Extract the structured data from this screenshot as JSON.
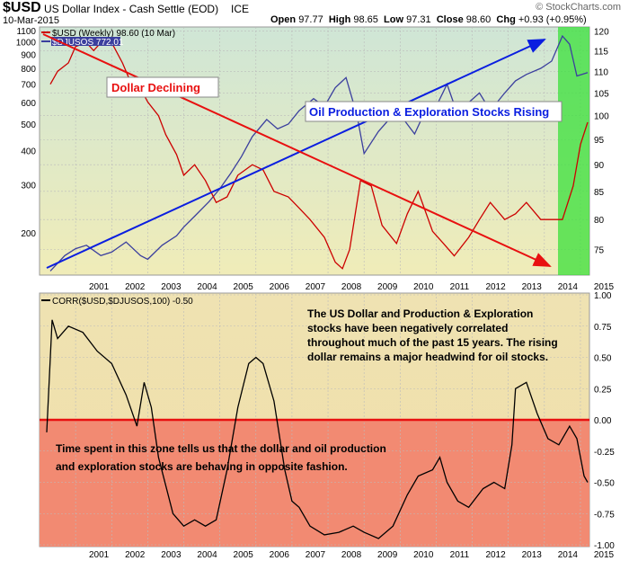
{
  "header": {
    "symbol": "$USD",
    "name": "US Dollar Index - Cash Settle (EOD)",
    "exchange": "ICE",
    "date": "10-Mar-2015",
    "open_label": "Open",
    "open": "97.77",
    "high_label": "High",
    "high": "98.65",
    "low_label": "Low",
    "low": "97.31",
    "close_label": "Close",
    "close": "98.60",
    "chg_label": "Chg",
    "chg": "+0.93 (+0.95%)",
    "brand": "© StockCharts.com"
  },
  "colors": {
    "usd": "#cc0000",
    "djusos": "#3b3f9e",
    "arrow_blue": "#0a1ee0",
    "arrow_red": "#e81010",
    "green_zone": "#39e039",
    "neg_zone": "#f28a72",
    "upper_bg_top": "#cfe6d6",
    "upper_bg_bottom": "#f0ecb8"
  },
  "chart_data": [
    {
      "type": "line",
      "legend": [
        {
          "name": "$USD (Weekly) 98.60 (10 Mar)",
          "color": "#cc0000"
        },
        {
          "name": "$DJUSOS 772.01",
          "color": "#3b3f9e"
        }
      ],
      "x_ticks": [
        "2001",
        "2002",
        "2003",
        "2004",
        "2005",
        "2006",
        "2007",
        "2008",
        "2009",
        "2010",
        "2011",
        "2012",
        "2013",
        "2014",
        "2015"
      ],
      "left_axis": {
        "scale": "log",
        "ticks": [
          200,
          300,
          400,
          500,
          600,
          700,
          800,
          900,
          1000,
          1100
        ],
        "series": "$DJUSOS"
      },
      "right_axis": {
        "scale": "log",
        "ticks": [
          75,
          80,
          85,
          90,
          95,
          100,
          105,
          110,
          115,
          120
        ],
        "series": "$USD"
      },
      "series": [
        {
          "name": "$USD",
          "axis": "right",
          "x": [
            2000.3,
            2000.5,
            2000.8,
            2001.0,
            2001.3,
            2001.5,
            2001.8,
            2002.0,
            2002.3,
            2002.5,
            2002.8,
            2003.0,
            2003.3,
            2003.5,
            2003.8,
            2004.0,
            2004.3,
            2004.6,
            2004.9,
            2005.2,
            2005.5,
            2005.9,
            2006.2,
            2006.5,
            2006.9,
            2007.2,
            2007.5,
            2007.9,
            2008.2,
            2008.4,
            2008.6,
            2008.9,
            2009.2,
            2009.5,
            2009.9,
            2010.2,
            2010.5,
            2010.9,
            2011.2,
            2011.5,
            2011.9,
            2012.2,
            2012.5,
            2012.9,
            2013.2,
            2013.5,
            2013.9,
            2014.2,
            2014.5,
            2014.8,
            2015.0,
            2015.2
          ],
          "values": [
            107,
            110,
            112,
            116,
            117,
            115,
            118,
            117,
            112,
            108,
            106,
            103,
            100,
            96,
            92,
            88,
            90,
            87,
            83,
            84,
            88,
            90,
            89,
            85,
            84,
            82,
            80,
            77,
            73,
            72,
            75,
            87,
            86,
            79,
            76,
            81,
            85,
            78,
            76,
            74,
            77,
            80,
            83,
            80,
            81,
            83,
            80,
            80,
            80,
            86,
            94,
            98.6
          ]
        },
        {
          "name": "$DJUSOS",
          "axis": "left",
          "x": [
            2000.3,
            2000.7,
            2001.0,
            2001.3,
            2001.7,
            2002.0,
            2002.4,
            2002.8,
            2003.0,
            2003.4,
            2003.8,
            2004.0,
            2004.3,
            2004.7,
            2005.0,
            2005.3,
            2005.6,
            2005.9,
            2006.3,
            2006.6,
            2006.9,
            2007.2,
            2007.6,
            2007.9,
            2008.2,
            2008.5,
            2008.8,
            2009.0,
            2009.4,
            2009.8,
            2010.1,
            2010.4,
            2010.7,
            2011.0,
            2011.3,
            2011.6,
            2011.9,
            2012.2,
            2012.5,
            2012.9,
            2013.2,
            2013.5,
            2013.9,
            2014.2,
            2014.5,
            2014.7,
            2014.9,
            2015.2
          ],
          "values": [
            145,
            165,
            175,
            180,
            165,
            170,
            185,
            165,
            160,
            180,
            195,
            210,
            230,
            260,
            290,
            330,
            380,
            450,
            520,
            480,
            500,
            560,
            620,
            580,
            680,
            740,
            540,
            390,
            470,
            540,
            520,
            460,
            560,
            580,
            700,
            540,
            600,
            650,
            560,
            650,
            720,
            760,
            800,
            850,
            1050,
            980,
            750,
            772
          ]
        }
      ]
    },
    {
      "type": "line",
      "legend": [
        {
          "name": "CORR($USD,$DJUSOS,100) -0.50",
          "color": "#000000"
        }
      ],
      "x_ticks": [
        "2001",
        "2002",
        "2003",
        "2004",
        "2005",
        "2006",
        "2007",
        "2008",
        "2009",
        "2010",
        "2011",
        "2012",
        "2013",
        "2014",
        "2015"
      ],
      "right_axis": {
        "ticks": [
          1.0,
          0.75,
          0.5,
          0.25,
          0.0,
          -0.25,
          -0.5,
          -0.75,
          -1.0
        ],
        "ylim": [
          -1.0,
          1.0
        ]
      },
      "series": [
        {
          "name": "CORR",
          "x": [
            2000.2,
            2000.35,
            2000.5,
            2000.8,
            2001.2,
            2001.6,
            2002.0,
            2002.4,
            2002.7,
            2002.9,
            2003.1,
            2003.3,
            2003.7,
            2004.0,
            2004.3,
            2004.6,
            2004.9,
            2005.2,
            2005.5,
            2005.8,
            2006.0,
            2006.2,
            2006.5,
            2006.8,
            2007.0,
            2007.2,
            2007.5,
            2007.9,
            2008.3,
            2008.7,
            2009.0,
            2009.4,
            2009.8,
            2010.2,
            2010.5,
            2010.9,
            2011.1,
            2011.3,
            2011.6,
            2011.9,
            2012.3,
            2012.6,
            2012.9,
            2013.1,
            2013.2,
            2013.5,
            2013.8,
            2014.1,
            2014.4,
            2014.7,
            2014.9,
            2015.1,
            2015.2
          ],
          "values": [
            -0.1,
            0.8,
            0.65,
            0.75,
            0.7,
            0.55,
            0.45,
            0.2,
            -0.05,
            0.3,
            0.1,
            -0.3,
            -0.75,
            -0.85,
            -0.8,
            -0.85,
            -0.8,
            -0.4,
            0.1,
            0.45,
            0.5,
            0.45,
            0.15,
            -0.4,
            -0.65,
            -0.7,
            -0.85,
            -0.92,
            -0.9,
            -0.85,
            -0.9,
            -0.95,
            -0.85,
            -0.6,
            -0.45,
            -0.4,
            -0.3,
            -0.5,
            -0.65,
            -0.7,
            -0.55,
            -0.5,
            -0.55,
            -0.2,
            0.25,
            0.3,
            0.05,
            -0.15,
            -0.2,
            -0.05,
            -0.15,
            -0.45,
            -0.5
          ]
        }
      ]
    }
  ],
  "annotations": {
    "dollar_declining": "Dollar Declining",
    "oil_rising": "Oil Production & Exploration Stocks Rising",
    "corr_note": [
      "The US Dollar and Production & Exploration",
      "stocks have been negatively correlated",
      "throughout much of the past 15 years.  The rising",
      "dollar remains a major headwind for oil stocks."
    ],
    "zone_note": [
      "Time spent in this zone tells us that the dollar and oil production",
      "and exploration stocks are behaving in opposite fashion."
    ]
  }
}
